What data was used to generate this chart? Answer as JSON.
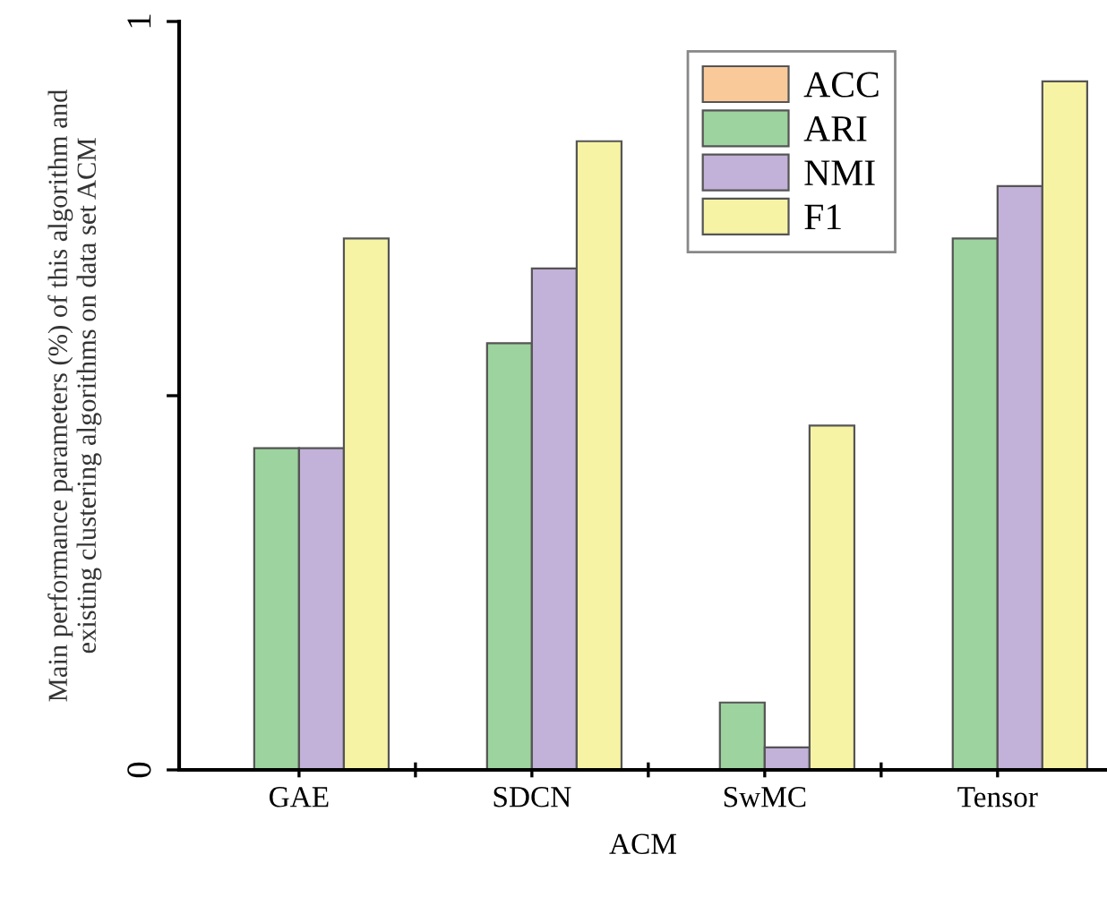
{
  "chart_data": {
    "type": "bar",
    "xlabel": "ACM",
    "ylabel": "Main performance parameters (%) of this algorithm and\nexisting clustering algorithms on data set ACM",
    "categories": [
      "GAE",
      "SDCN",
      "SwMC",
      "Tensor"
    ],
    "series": [
      {
        "name": "ACC",
        "color": "#f9c99a",
        "values": [
          null,
          null,
          null,
          null
        ]
      },
      {
        "name": "ARI",
        "color": "#9dd39e",
        "values": [
          0.43,
          0.57,
          0.09,
          0.71
        ]
      },
      {
        "name": "NMI",
        "color": "#c2b1d8",
        "values": [
          0.43,
          0.67,
          0.03,
          0.78
        ]
      },
      {
        "name": "F1",
        "color": "#f7f3a5",
        "values": [
          0.71,
          0.84,
          0.46,
          0.92
        ]
      }
    ],
    "ylim": [
      0,
      1
    ],
    "yticks": [
      0,
      {
        "value": 0.5,
        "label": null
      },
      1
    ],
    "legend": "top",
    "grid": false
  }
}
